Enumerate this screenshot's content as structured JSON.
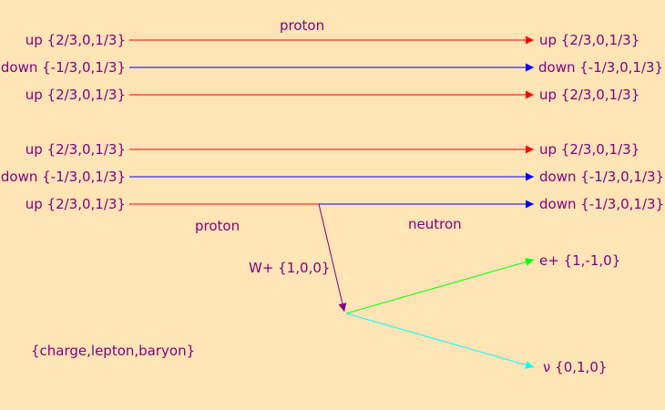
{
  "labels": {
    "proton_top": "proton",
    "proton_bottom": "proton",
    "neutron": "neutron",
    "w_boson": "W+ {1,0,0}",
    "positron": "e+ {1,-1,0}",
    "neutrino": "ν {0,1,0}",
    "legend": "{charge,lepton,baryon}"
  },
  "row1": {
    "left": [
      "up {2/3,0,1/3}",
      "down {-1/3,0,1/3}",
      "up {2/3,0,1/3}"
    ],
    "right": [
      "up {2/3,0,1/3}",
      "down {-1/3,0,1/3}",
      "up {2/3,0,1/3}"
    ]
  },
  "row2": {
    "left": [
      "up {2/3,0,1/3}",
      "down {-1/3,0,1/3}",
      "up {2/3,0,1/3}"
    ],
    "right": [
      "up {2/3,0,1/3}",
      "down {-1/3,0,1/3}",
      "down {-1/3,0,1/3}"
    ]
  },
  "colors": {
    "background": "#ffe4b5",
    "text": "#800080",
    "up_quark": "#ff0000",
    "down_quark": "#0000ff",
    "w_boson": "#800080",
    "positron": "#00ff00",
    "neutrino": "#00ffff"
  }
}
